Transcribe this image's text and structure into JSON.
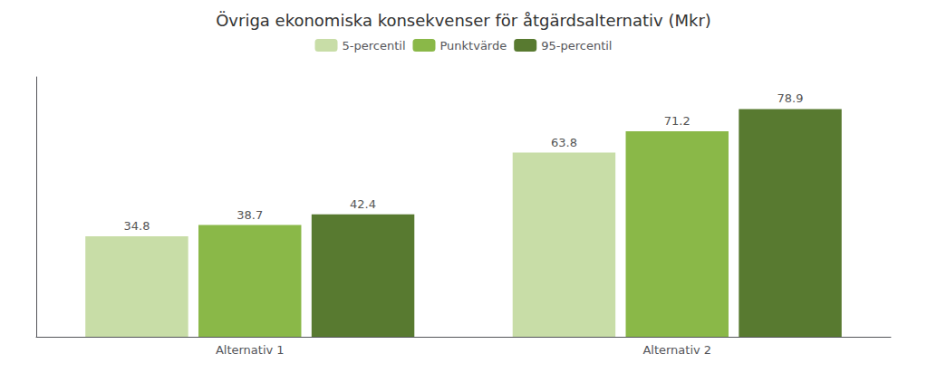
{
  "chart_data": {
    "type": "bar",
    "title": "Övriga ekonomiska konsekvenser för åtgärdsalternativ (Mkr)",
    "categories": [
      "Alternativ 1",
      "Alternativ 2"
    ],
    "series": [
      {
        "name": "5-percentil",
        "color": "#c8dda7",
        "values": [
          34.8,
          63.8
        ]
      },
      {
        "name": "Punktvärde",
        "color": "#8ab848",
        "values": [
          38.7,
          71.2
        ]
      },
      {
        "name": "95-percentil",
        "color": "#587a30",
        "values": [
          42.4,
          78.9
        ]
      }
    ],
    "ylim": [
      0,
      90
    ],
    "grid": false,
    "legend": "top",
    "data_labels": true,
    "tick_labels": "x"
  }
}
